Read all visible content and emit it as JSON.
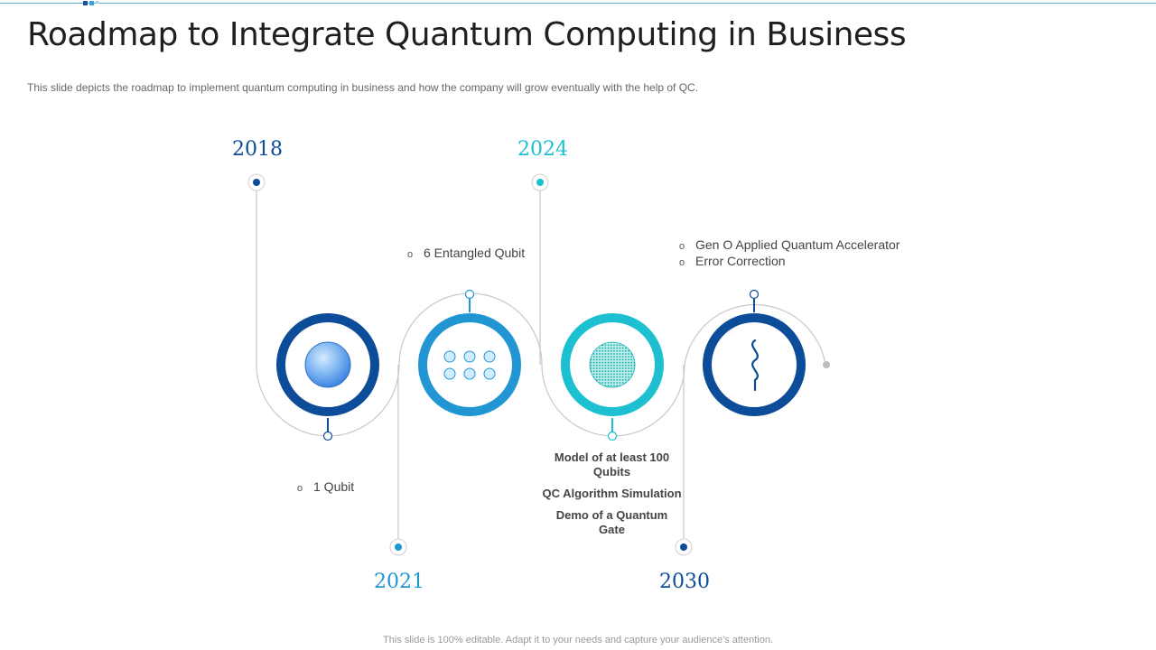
{
  "title": "Roadmap to Integrate Quantum Computing in Business",
  "subtitle": "This slide depicts the roadmap to implement quantum computing in business and how the company will grow eventually with the help of QC.",
  "years": {
    "y2018": "2018",
    "y2021": "2021",
    "y2024": "2024",
    "y2030": "2030"
  },
  "notes": {
    "n2018": {
      "bullet": "o",
      "items": [
        "1 Qubit"
      ]
    },
    "n2021": {
      "bullet": "o",
      "items": [
        "6 Entangled Qubit"
      ]
    },
    "n2030": {
      "bullet": "o",
      "items": [
        "Gen O Applied Quantum Accelerator",
        "Error Correction"
      ]
    }
  },
  "milestones_2024": [
    "Model of at least 100 Qubits",
    "QC Algorithm Simulation",
    "Demo of a Quantum Gate"
  ],
  "icons": [
    "qubit-sphere-icon",
    "qubit-grid-icon",
    "entangled-sphere-icon",
    "wave-icon"
  ],
  "colors": {
    "navy": "#0d4c98",
    "blue": "#2196d3",
    "cyan": "#1cc0d0",
    "gray_line": "#c8c8c8"
  },
  "footer": "This slide is 100% editable. Adapt it to your needs and capture your audience's attention."
}
